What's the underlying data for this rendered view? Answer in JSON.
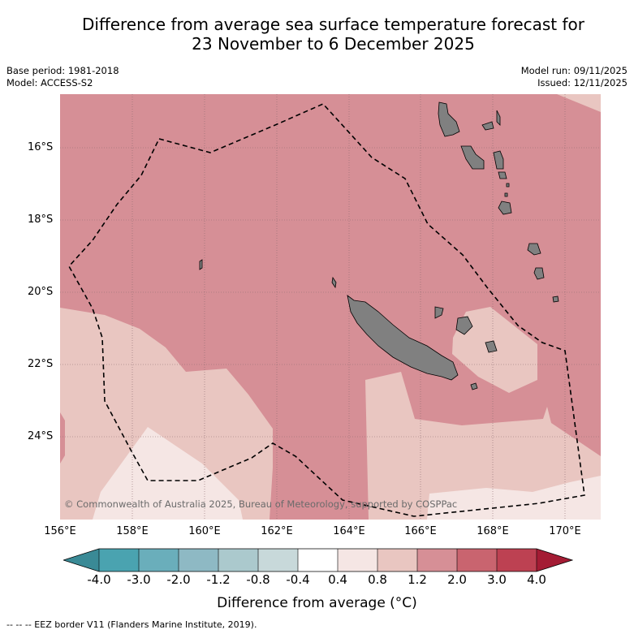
{
  "title": {
    "line1": "Difference from average sea surface temperature forecast for",
    "line2": "23 November to 6 December 2025"
  },
  "meta": {
    "base_period": "Base period: 1981-2018",
    "model": "Model: ACCESS-S2",
    "model_run": "Model run: 09/11/2025",
    "issued": "Issued: 12/11/2025"
  },
  "axes": {
    "lat_labels": [
      "16°S",
      "18°S",
      "20°S",
      "22°S",
      "24°S"
    ],
    "lon_labels": [
      "156°E",
      "158°E",
      "160°E",
      "162°E",
      "164°E",
      "166°E",
      "168°E",
      "170°E"
    ]
  },
  "copyright": "© Commonwealth of Australia 2025, Bureau of Meteorology, supported by COSPPac",
  "colorbar": {
    "tick_labels": [
      "-4.0",
      "-3.0",
      "-2.0",
      "-1.2",
      "-0.8",
      "-0.4",
      "0.4",
      "0.8",
      "1.2",
      "2.0",
      "3.0",
      "4.0"
    ],
    "colors": [
      "#3a8a96",
      "#4aa3b0",
      "#6aaebb",
      "#8eb9c4",
      "#abc9cd",
      "#c8d9da",
      "#ffffff",
      "#f5e6e4",
      "#e9c6c1",
      "#d68f96",
      "#c9646f",
      "#bd4152",
      "#a41c34"
    ],
    "label": "Difference from average (°C)"
  },
  "map_colors": {
    "anomaly_1_2_to_2_0": "#d68f96",
    "anomaly_0_8_to_1_2": "#e9c6c1",
    "anomaly_0_4_to_0_8": "#f5e6e4",
    "land": "#808080"
  },
  "footnote": "--  --  -- EEZ border V11 (Flanders Marine Institute, 2019)."
}
